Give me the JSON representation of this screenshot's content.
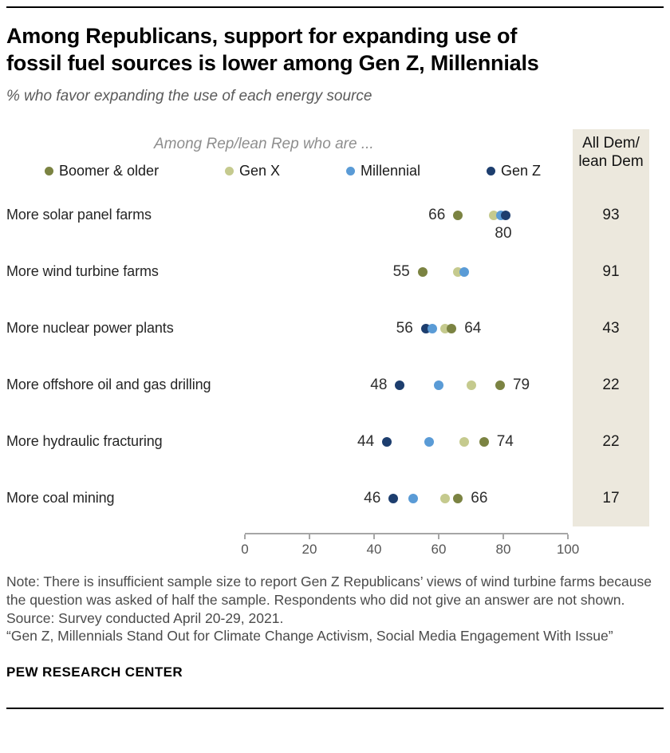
{
  "meta": {
    "brand": "PEW RESEARCH CENTER"
  },
  "header": {
    "title": "Among Republicans, support for expanding use of\nfossil fuel sources is lower among Gen Z, Millennials",
    "subtitle": "% who favor expanding the use of each energy source"
  },
  "chart_data": {
    "type": "scatter",
    "title": "Among Republicans, support for expanding use of fossil fuel sources is lower among Gen Z, Millennials",
    "subtitle": "% who favor expanding the use of each energy source",
    "group_header": "Among Rep/lean Rep who are ...",
    "dem_header": "All Dem/\nlean Dem",
    "xlim": [
      0,
      100
    ],
    "x_ticks": [
      0,
      20,
      40,
      60,
      80,
      100
    ],
    "grid": false,
    "legend_position": "top",
    "legend": [
      {
        "name": "Boomer & older",
        "color": "#7b8342"
      },
      {
        "name": "Gen X",
        "color": "#c5ca8e"
      },
      {
        "name": "Millennial",
        "color": "#5a9bd6"
      },
      {
        "name": "Gen Z",
        "color": "#1d3e6e"
      }
    ],
    "dem_panel_color": "#ece8dd",
    "rows": [
      {
        "label": "More solar panel farms",
        "points": [
          {
            "series": "Boomer & older",
            "value": 66
          },
          {
            "series": "Gen X",
            "value": 77
          },
          {
            "series": "Millennial",
            "value": 80
          },
          {
            "series": "Gen Z",
            "value": 80
          }
        ],
        "value_labels": [
          {
            "text": "66",
            "x": 66,
            "placement": "left"
          },
          {
            "text": "80",
            "x": 80,
            "placement": "below"
          }
        ],
        "all_dem": 93
      },
      {
        "label": "More wind turbine farms",
        "points": [
          {
            "series": "Boomer & older",
            "value": 55
          },
          {
            "series": "Gen X",
            "value": 66
          },
          {
            "series": "Millennial",
            "value": 68
          }
        ],
        "value_labels": [
          {
            "text": "55",
            "x": 55,
            "placement": "left"
          }
        ],
        "all_dem": 91
      },
      {
        "label": "More nuclear power plants",
        "points": [
          {
            "series": "Gen Z",
            "value": 56
          },
          {
            "series": "Millennial",
            "value": 58
          },
          {
            "series": "Gen X",
            "value": 62
          },
          {
            "series": "Boomer & older",
            "value": 64
          }
        ],
        "value_labels": [
          {
            "text": "56",
            "x": 56,
            "placement": "left"
          },
          {
            "text": "64",
            "x": 64,
            "placement": "right"
          }
        ],
        "all_dem": 43
      },
      {
        "label": "More offshore oil and gas drilling",
        "points": [
          {
            "series": "Gen Z",
            "value": 48
          },
          {
            "series": "Millennial",
            "value": 60
          },
          {
            "series": "Gen X",
            "value": 70
          },
          {
            "series": "Boomer & older",
            "value": 79
          }
        ],
        "value_labels": [
          {
            "text": "48",
            "x": 48,
            "placement": "left"
          },
          {
            "text": "79",
            "x": 79,
            "placement": "right"
          }
        ],
        "all_dem": 22
      },
      {
        "label": "More hydraulic fracturing",
        "points": [
          {
            "series": "Gen Z",
            "value": 44
          },
          {
            "series": "Millennial",
            "value": 57
          },
          {
            "series": "Gen X",
            "value": 68
          },
          {
            "series": "Boomer & older",
            "value": 74
          }
        ],
        "value_labels": [
          {
            "text": "44",
            "x": 44,
            "placement": "left"
          },
          {
            "text": "74",
            "x": 74,
            "placement": "right"
          }
        ],
        "all_dem": 22
      },
      {
        "label": "More coal mining",
        "points": [
          {
            "series": "Gen Z",
            "value": 46
          },
          {
            "series": "Millennial",
            "value": 52
          },
          {
            "series": "Gen X",
            "value": 62
          },
          {
            "series": "Boomer & older",
            "value": 66
          }
        ],
        "value_labels": [
          {
            "text": "46",
            "x": 46,
            "placement": "left"
          },
          {
            "text": "66",
            "x": 66,
            "placement": "right"
          }
        ],
        "all_dem": 17
      }
    ]
  },
  "notes": [
    "Note: There is insufficient sample size to report Gen Z Republicans’ views of wind turbine farms because the question was asked of half the sample. Respondents who did not give an answer are not shown.",
    "Source: Survey conducted April 20-29, 2021.",
    "“Gen Z, Millennials Stand Out for Climate Change Activism, Social Media Engagement With Issue”"
  ]
}
